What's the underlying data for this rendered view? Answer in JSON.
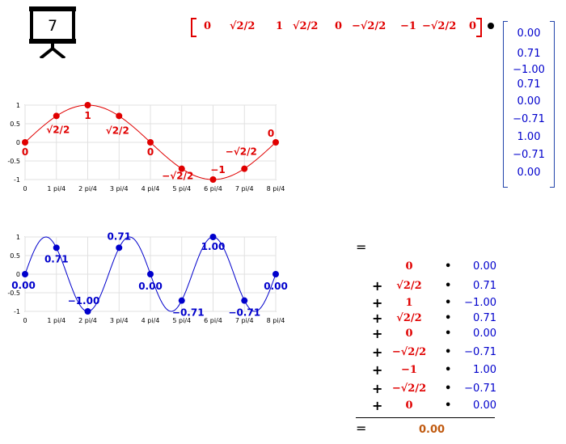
{
  "slide": {
    "number": "7"
  },
  "row_vector": {
    "entries": [
      "0",
      "√2/2",
      "1",
      "√2/2",
      "0",
      "−√2/2",
      "−1",
      "−√2/2",
      "0"
    ]
  },
  "column_vector": {
    "entries": [
      "0.00",
      "0.71",
      "−1.00",
      "0.71",
      "0.00",
      "−0.71",
      "1.00",
      "−0.71",
      "0.00"
    ]
  },
  "sum": {
    "equals_top": "=",
    "rows": [
      {
        "plus": "",
        "a": "0",
        "b": "0.00"
      },
      {
        "plus": "+",
        "a": "√2/2",
        "b": "0.71"
      },
      {
        "plus": "+",
        "a": "1",
        "b": "−1.00"
      },
      {
        "plus": "+",
        "a": "√2/2",
        "b": "0.71"
      },
      {
        "plus": "+",
        "a": "0",
        "b": "0.00"
      },
      {
        "plus": "+",
        "a": "−√2/2",
        "b": "−0.71"
      },
      {
        "plus": "+",
        "a": "−1",
        "b": "1.00"
      },
      {
        "plus": "+",
        "a": "−√2/2",
        "b": "−0.71"
      },
      {
        "plus": "+",
        "a": "0",
        "b": "0.00"
      }
    ],
    "dot_symbol": "•",
    "equals_bottom": "=",
    "result": "0.00"
  },
  "colors": {
    "red": "#e00000",
    "blue": "#0000cc",
    "result": "#c05a10"
  },
  "chart_data": [
    {
      "type": "line",
      "x": [
        0,
        1,
        2,
        3,
        4,
        5,
        6,
        7,
        8
      ],
      "xticks": [
        "0",
        "1 pi/4",
        "2 pi/4",
        "3 pi/4",
        "4 pi/4",
        "5 pi/4",
        "6 pi/4",
        "7 pi/4",
        "8 pi/4"
      ],
      "yticks": [
        "1",
        "0.5",
        "0",
        "-0.5",
        "-1"
      ],
      "ylim": [
        -1,
        1
      ],
      "grid": true,
      "series": [
        {
          "values": [
            0,
            0.71,
            1,
            0.71,
            0,
            -0.71,
            -1,
            -0.71,
            0
          ]
        }
      ],
      "point_labels": [
        "0",
        "√2/2",
        "1",
        "√2/2",
        "0",
        "−√2/2",
        "−1",
        "−√2/2",
        "0"
      ],
      "curve": "sin(x)",
      "color": "#e00000"
    },
    {
      "type": "line",
      "x": [
        0,
        1,
        2,
        3,
        4,
        5,
        6,
        7,
        8
      ],
      "xticks": [
        "0",
        "1 pi/4",
        "2 pi/4",
        "3 pi/4",
        "4 pi/4",
        "5 pi/4",
        "6 pi/4",
        "7 pi/4",
        "8 pi/4"
      ],
      "yticks": [
        "1",
        "0.5",
        "0",
        "-0.5",
        "-1"
      ],
      "ylim": [
        -1,
        1
      ],
      "grid": true,
      "series": [
        {
          "values": [
            0,
            0.71,
            -1,
            0.71,
            0,
            -0.71,
            1,
            -0.71,
            0
          ]
        }
      ],
      "point_labels": [
        "0.00",
        "0.71",
        "−1.00",
        "0.71",
        "0.00",
        "−0.71",
        "1.00",
        "−0.71",
        "0.00"
      ],
      "curve": "sin(3x)",
      "color": "#0000cc"
    }
  ]
}
